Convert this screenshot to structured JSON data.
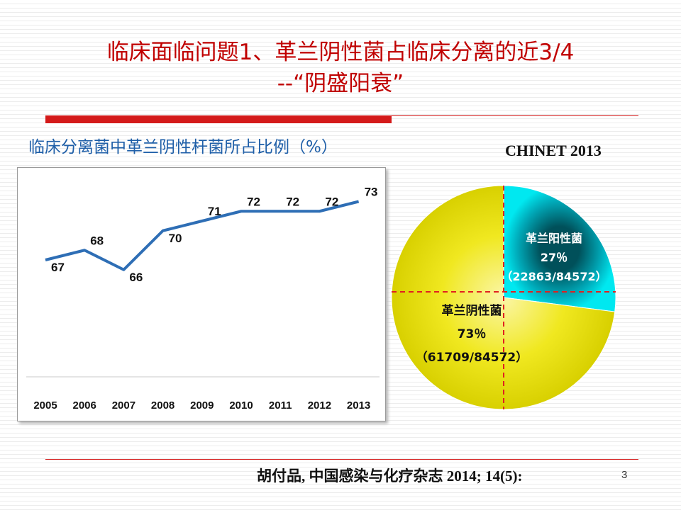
{
  "slide": {
    "title_line1": "临床面临问题1、革兰阴性菌占临床分离的近3/4",
    "title_line2": "--“阴盛阳衰”",
    "subtitle": "临床分离菌中革兰阴性杆菌所占比例（%）",
    "pie_title": "CHINET 2013",
    "citation": "胡付品, 中国感染与化疗杂志 2014; 14(5):",
    "page_number": "3",
    "colors": {
      "title": "#c00000",
      "accent_bar": "#d41a1a",
      "subtitle": "#1f5fa8",
      "line": "#2e6eb5"
    }
  },
  "chart_data": [
    {
      "type": "line",
      "title": "",
      "categories": [
        "2005",
        "2006",
        "2007",
        "2008",
        "2009",
        "2010",
        "2011",
        "2012",
        "2013"
      ],
      "series": [
        {
          "values": [
            67,
            68,
            66,
            70,
            71,
            72,
            72,
            72,
            73
          ]
        }
      ],
      "ylim": [
        55,
        75
      ],
      "grid": false,
      "legend": "none",
      "data_labels": true
    },
    {
      "type": "pie",
      "title": "CHINET 2013",
      "slices": [
        {
          "label": "革兰阳性菌",
          "percent_text": "27％",
          "ratio_text": "（22863/84572）",
          "value": 22863,
          "color": "#00c8d8"
        },
        {
          "label": "革兰阴性菌",
          "percent_text": "73％",
          "ratio_text": "（61709/84572）",
          "value": 61709,
          "color": "#e8e000"
        }
      ]
    }
  ]
}
